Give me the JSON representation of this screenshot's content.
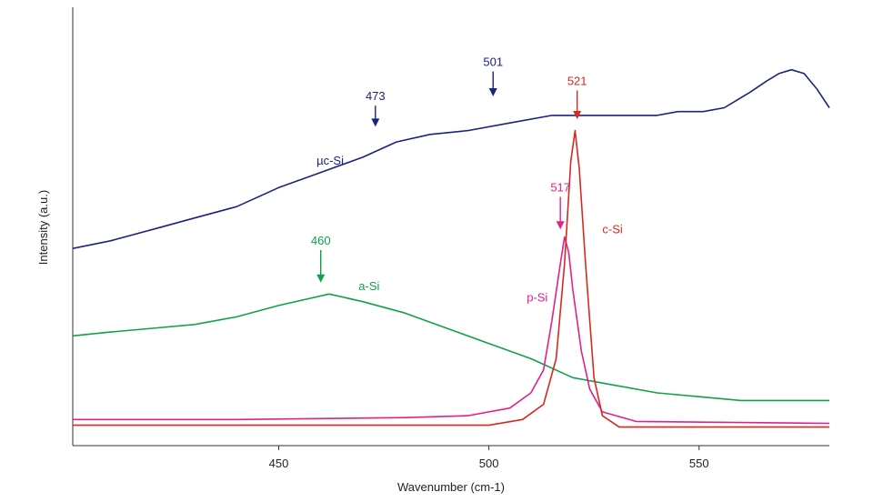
{
  "chart_data": {
    "type": "line",
    "xlabel": "Wavenumber (cm-1)",
    "ylabel": "Intensity (a.u.)",
    "xlim": [
      401,
      581
    ],
    "ylim": [
      0,
      1
    ],
    "x_ticks": [
      450,
      500,
      550
    ],
    "y_ticks_labeled": false,
    "grid": false,
    "legend": "none",
    "series": [
      {
        "name": "µc-Si",
        "color": "#1a237e",
        "points": [
          [
            401,
            0.49
          ],
          [
            410,
            0.51
          ],
          [
            420,
            0.54
          ],
          [
            430,
            0.57
          ],
          [
            440,
            0.6
          ],
          [
            450,
            0.65
          ],
          [
            460,
            0.69
          ],
          [
            470,
            0.73
          ],
          [
            478,
            0.77
          ],
          [
            486,
            0.79
          ],
          [
            495,
            0.8
          ],
          [
            505,
            0.82
          ],
          [
            515,
            0.84
          ],
          [
            522,
            0.84
          ],
          [
            530,
            0.84
          ],
          [
            540,
            0.84
          ],
          [
            545,
            0.85
          ],
          [
            551,
            0.85
          ],
          [
            556,
            0.86
          ],
          [
            559,
            0.88
          ],
          [
            562,
            0.9
          ],
          [
            566,
            0.93
          ],
          [
            569,
            0.95
          ],
          [
            572,
            0.96
          ],
          [
            575,
            0.95
          ],
          [
            578,
            0.91
          ],
          [
            581,
            0.86
          ]
        ]
      },
      {
        "name": "a-Si",
        "color": "#11a14a",
        "points": [
          [
            401,
            0.26
          ],
          [
            410,
            0.27
          ],
          [
            420,
            0.28
          ],
          [
            430,
            0.29
          ],
          [
            440,
            0.31
          ],
          [
            450,
            0.34
          ],
          [
            458,
            0.36
          ],
          [
            462,
            0.37
          ],
          [
            470,
            0.35
          ],
          [
            480,
            0.32
          ],
          [
            490,
            0.28
          ],
          [
            500,
            0.24
          ],
          [
            510,
            0.2
          ],
          [
            520,
            0.15
          ],
          [
            530,
            0.13
          ],
          [
            540,
            0.11
          ],
          [
            550,
            0.1
          ],
          [
            560,
            0.09
          ],
          [
            570,
            0.09
          ],
          [
            581,
            0.09
          ]
        ]
      },
      {
        "name": "p-Si",
        "color": "#e0218a",
        "points": [
          [
            401,
            0.04
          ],
          [
            440,
            0.04
          ],
          [
            480,
            0.045
          ],
          [
            495,
            0.05
          ],
          [
            505,
            0.07
          ],
          [
            510,
            0.11
          ],
          [
            513,
            0.17
          ],
          [
            515,
            0.3
          ],
          [
            517,
            0.45
          ],
          [
            518,
            0.52
          ],
          [
            519,
            0.48
          ],
          [
            520,
            0.38
          ],
          [
            522,
            0.22
          ],
          [
            524,
            0.12
          ],
          [
            527,
            0.06
          ],
          [
            535,
            0.035
          ],
          [
            581,
            0.03
          ]
        ]
      },
      {
        "name": "c-Si",
        "color": "#d62a1f",
        "points": [
          [
            401,
            0.025
          ],
          [
            500,
            0.025
          ],
          [
            508,
            0.04
          ],
          [
            513,
            0.08
          ],
          [
            516,
            0.2
          ],
          [
            518,
            0.45
          ],
          [
            519.5,
            0.72
          ],
          [
            520.5,
            0.8
          ],
          [
            521.5,
            0.7
          ],
          [
            523,
            0.45
          ],
          [
            525,
            0.15
          ],
          [
            527,
            0.05
          ],
          [
            531,
            0.02
          ],
          [
            581,
            0.02
          ]
        ]
      }
    ]
  },
  "annotations": [
    {
      "label": "µc-Si",
      "color": "#1a237e",
      "x": 459,
      "y": 0.71,
      "kind": "series-label"
    },
    {
      "label": "a-Si",
      "color": "#11a14a",
      "x": 469,
      "y": 0.38,
      "kind": "series-label"
    },
    {
      "label": "p-Si",
      "color": "#e0218a",
      "x": 509,
      "y": 0.35,
      "kind": "series-label"
    },
    {
      "label": "c-Si",
      "color": "#d62a1f",
      "x": 527,
      "y": 0.53,
      "kind": "series-label"
    },
    {
      "label": "473",
      "color": "#1a237e",
      "x": 473,
      "y": 0.88,
      "kind": "peak-arrow",
      "arrow_to": 0.81
    },
    {
      "label": "501",
      "color": "#1a237e",
      "x": 501,
      "y": 0.97,
      "kind": "peak-arrow",
      "arrow_to": 0.89
    },
    {
      "label": "460",
      "color": "#11a14a",
      "x": 460,
      "y": 0.5,
      "kind": "peak-arrow",
      "arrow_to": 0.4
    },
    {
      "label": "517",
      "color": "#e0218a",
      "x": 517,
      "y": 0.64,
      "kind": "peak-arrow",
      "arrow_to": 0.54
    },
    {
      "label": "521",
      "color": "#d62a1f",
      "x": 521,
      "y": 0.92,
      "kind": "peak-arrow",
      "arrow_to": 0.83
    }
  ]
}
